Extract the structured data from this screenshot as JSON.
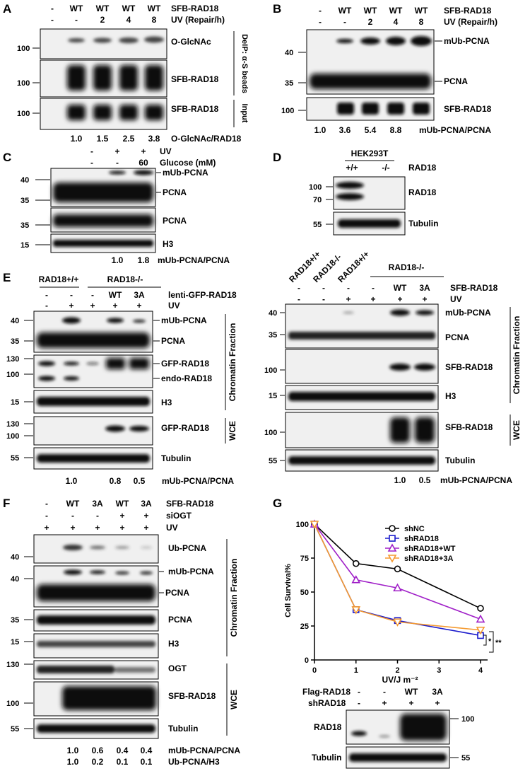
{
  "panel_letters": [
    "A",
    "B",
    "C",
    "D",
    "E",
    "F",
    "G"
  ],
  "common": {
    "minus": "-",
    "plus": "+",
    "wt": "WT",
    "a3": "3A",
    "uv": "UV",
    "wce": "WCE",
    "chromatin": "Chromatin Fraction",
    "mub_ratio": "mUb-PCNA/PCNA"
  },
  "panelA": {
    "row1": [
      "-",
      "WT",
      "WT",
      "WT",
      "WT"
    ],
    "row1_label": "SFB-RAD18",
    "row2": [
      "-",
      "-",
      "2",
      "4",
      "8"
    ],
    "row2_label": "UV (Repair/h)",
    "blots": [
      "O-GlcNAc",
      "SFB-RAD18",
      "SFB-RAD18"
    ],
    "mw": [
      "100",
      "100",
      "100"
    ],
    "side1": "DeIP: α-S beads",
    "side2": "Input",
    "ratios": [
      "1.0",
      "1.5",
      "2.5",
      "3.8"
    ],
    "ratio_label": "O-GlcNAc/RAD18"
  },
  "panelB": {
    "row1": [
      "-",
      "WT",
      "WT",
      "WT",
      "WT"
    ],
    "row1_label": "SFB-RAD18",
    "row2": [
      "-",
      "-",
      "2",
      "4",
      "8"
    ],
    "row2_label": "UV (Repair/h)",
    "bands": [
      "mUb-PCNA",
      "PCNA",
      "SFB-RAD18"
    ],
    "mw": [
      "40",
      "35",
      "100"
    ],
    "ratios": [
      "1.0",
      "3.6",
      "5.4",
      "8.8"
    ],
    "ratio_label": "mUb-PCNA/PCNA"
  },
  "panelC": {
    "row1": [
      "-",
      "+",
      "+"
    ],
    "row1_label": "UV",
    "row2": [
      "-",
      "-",
      "60"
    ],
    "row2_label": "Glucose (mM)",
    "bands": [
      "mUb-PCNA",
      "PCNA",
      "PCNA",
      "H3"
    ],
    "mw": [
      "40",
      "35",
      "35",
      "15"
    ],
    "ratios": [
      "1.0",
      "1.8"
    ],
    "ratio_label": "mUb-PCNA/PCNA"
  },
  "panelD": {
    "cell": "HEK293T",
    "geno": [
      "+/+",
      "-/-"
    ],
    "geno_label": "RAD18",
    "bands": [
      "RAD18",
      "Tubulin"
    ],
    "mw": [
      "100",
      "70",
      "55"
    ],
    "lower_header": [
      "RAD18+/+",
      "RAD18-/-",
      "RAD18+/+"
    ],
    "lower_group": "RAD18-/-",
    "row1": [
      "-",
      "-",
      "-",
      "-",
      "WT",
      "3A"
    ],
    "row1_label": "SFB-RAD18",
    "row2": [
      "-",
      "-",
      "+",
      "+",
      "+",
      "+"
    ],
    "row2_label": "UV",
    "lower_bands": [
      "mUb-PCNA",
      "PCNA",
      "SFB-RAD18",
      "H3",
      "SFB-RAD18",
      "Tubulin"
    ],
    "lower_mw": [
      "40",
      "35",
      "100",
      "15",
      "100",
      "55"
    ],
    "ratios": [
      "1.0",
      "0.5"
    ],
    "ratio_label": "mUb-PCNA/PCNA"
  },
  "panelE": {
    "group1": "RAD18+/+",
    "group2": "RAD18-/-",
    "row1": [
      "-",
      "-",
      "-",
      "WT",
      "3A"
    ],
    "row1_label": "lenti-GFP-RAD18",
    "row2": [
      "-",
      "+",
      "+",
      "+",
      "+"
    ],
    "row2_label": "UV",
    "bands": [
      "mUb-PCNA",
      "PCNA",
      "GFP-RAD18",
      "endo-RAD18",
      "H3",
      "GFP-RAD18",
      "Tubulin"
    ],
    "mw": [
      "40",
      "35",
      "130",
      "100",
      "15",
      "130",
      "100",
      "55"
    ],
    "ratios": [
      "1.0",
      "0.8",
      "0.5"
    ],
    "ratio_label": "mUb-PCNA/PCNA"
  },
  "panelF": {
    "row1": [
      "-",
      "WT",
      "3A",
      "WT",
      "3A"
    ],
    "row1_label": "SFB-RAD18",
    "row2": [
      "-",
      "-",
      "-",
      "+",
      "+"
    ],
    "row2_label": "siOGT",
    "row3": [
      "+",
      "+",
      "+",
      "+",
      "+"
    ],
    "row3_label": "UV",
    "bands": [
      "Ub-PCNA",
      "mUb-PCNA",
      "PCNA",
      "PCNA",
      "H3",
      "OGT",
      "SFB-RAD18",
      "Tubulin"
    ],
    "mw": [
      "40",
      "40",
      "35",
      "15",
      "130",
      "100",
      "55"
    ],
    "ratios1": [
      "1.0",
      "0.6",
      "0.4",
      "0.4"
    ],
    "ratio1_label": "mUb-PCNA/PCNA",
    "ratios2": [
      "1.0",
      "0.2",
      "0.1",
      "0.1"
    ],
    "ratio2_label": "Ub-PCNA/H3"
  },
  "panelG": {
    "row1": [
      "-",
      "-",
      "WT",
      "3A"
    ],
    "row1_label": "Flag-RAD18",
    "row2": [
      "-",
      "+",
      "+",
      "+"
    ],
    "row2_label": "shRAD18",
    "bands": [
      "RAD18",
      "Tubulin"
    ],
    "mw": [
      "100",
      "55"
    ],
    "sig1": "*",
    "sig2": "**"
  },
  "chart_data": {
    "type": "line",
    "x": [
      0,
      1,
      2,
      4
    ],
    "xlabel": "UV/J m⁻²",
    "ylabel": "Cell Survival%",
    "xlim": [
      0,
      4
    ],
    "ylim": [
      0,
      100
    ],
    "xticks": [
      "0",
      "1",
      "2",
      "3",
      "4"
    ],
    "yticks": [
      "0",
      "25",
      "50",
      "75",
      "100"
    ],
    "legend": "top-right",
    "series": [
      {
        "name": "shNC",
        "values": [
          100,
          71,
          67,
          38
        ],
        "color": "#000000",
        "marker": "circle"
      },
      {
        "name": "shRAD18",
        "values": [
          100,
          37,
          29,
          18
        ],
        "color": "#1a1acc",
        "marker": "square"
      },
      {
        "name": "shRAD18+WT",
        "values": [
          100,
          59,
          53,
          30
        ],
        "color": "#a020c8",
        "marker": "triangle-up"
      },
      {
        "name": "shRAD18+3A",
        "values": [
          100,
          37,
          28,
          22
        ],
        "color": "#f59a30",
        "marker": "triangle-down"
      }
    ]
  }
}
